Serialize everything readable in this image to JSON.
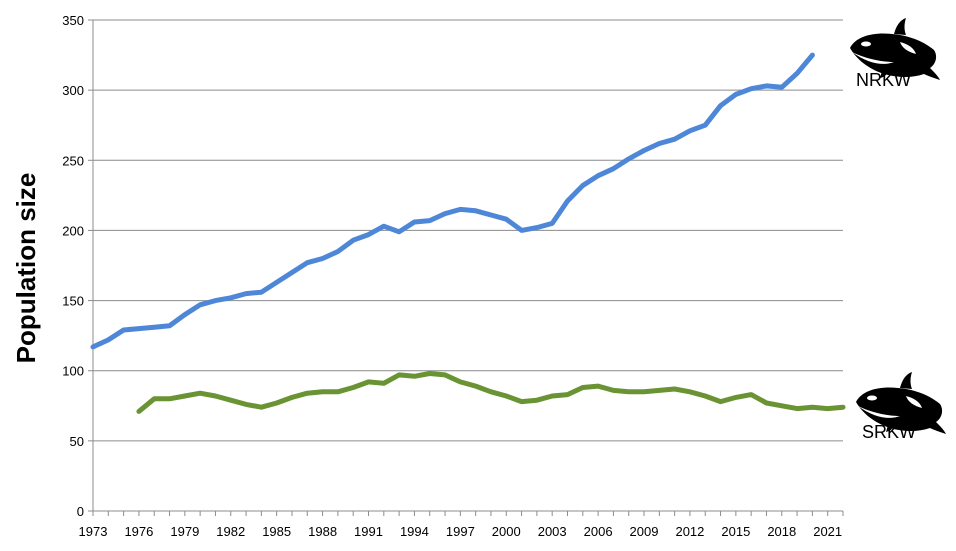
{
  "chart_data": {
    "type": "line",
    "title": "",
    "xlabel": "",
    "ylabel": "Population size",
    "xlim": [
      1973,
      2022
    ],
    "ylim": [
      0,
      350
    ],
    "y_ticks": [
      0,
      50,
      100,
      150,
      200,
      250,
      300,
      350
    ],
    "x_ticks": [
      1973,
      1976,
      1979,
      1982,
      1985,
      1988,
      1991,
      1994,
      1997,
      2000,
      2003,
      2006,
      2009,
      2012,
      2015,
      2018,
      2021
    ],
    "grid": "horizontal",
    "legend": "none",
    "series": [
      {
        "name": "NRKW",
        "color": "#4f87d8",
        "icon": "orca-icon",
        "x": [
          1973,
          1974,
          1975,
          1976,
          1977,
          1978,
          1979,
          1980,
          1981,
          1982,
          1983,
          1984,
          1985,
          1986,
          1987,
          1988,
          1989,
          1990,
          1991,
          1992,
          1993,
          1994,
          1995,
          1996,
          1997,
          1998,
          1999,
          2000,
          2001,
          2002,
          2003,
          2004,
          2005,
          2006,
          2007,
          2008,
          2009,
          2010,
          2011,
          2012,
          2013,
          2014,
          2015,
          2016,
          2017,
          2018,
          2019,
          2020
        ],
        "values": [
          117,
          122,
          129,
          130,
          131,
          132,
          140,
          147,
          150,
          152,
          155,
          156,
          163,
          170,
          177,
          180,
          185,
          193,
          197,
          203,
          199,
          206,
          207,
          212,
          215,
          214,
          211,
          208,
          200,
          202,
          205,
          221,
          232,
          239,
          244,
          251,
          257,
          262,
          265,
          271,
          275,
          289,
          297,
          301,
          303,
          302,
          312,
          325
        ]
      },
      {
        "name": "SRKW",
        "color": "#6a9333",
        "icon": "orca-icon",
        "x": [
          1976,
          1977,
          1978,
          1979,
          1980,
          1981,
          1982,
          1983,
          1984,
          1985,
          1986,
          1987,
          1988,
          1989,
          1990,
          1991,
          1992,
          1993,
          1994,
          1995,
          1996,
          1997,
          1998,
          1999,
          2000,
          2001,
          2002,
          2003,
          2004,
          2005,
          2006,
          2007,
          2008,
          2009,
          2010,
          2011,
          2012,
          2013,
          2014,
          2015,
          2016,
          2017,
          2018,
          2019,
          2020,
          2021,
          2022
        ],
        "values": [
          71,
          80,
          80,
          82,
          84,
          82,
          79,
          76,
          74,
          77,
          81,
          84,
          85,
          85,
          88,
          92,
          91,
          97,
          96,
          98,
          97,
          92,
          89,
          85,
          82,
          78,
          79,
          82,
          83,
          88,
          89,
          86,
          85,
          85,
          86,
          87,
          85,
          82,
          78,
          81,
          83,
          77,
          75,
          73,
          74,
          73,
          74
        ]
      }
    ]
  }
}
